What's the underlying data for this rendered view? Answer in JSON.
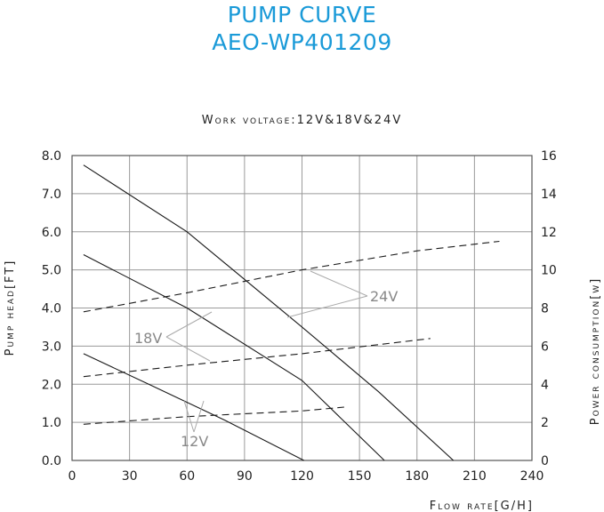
{
  "chart_data": {
    "type": "line",
    "title": "PUMP CURVE",
    "subtitle": "AEO-WP401209",
    "annotation": "Work voltage:12V&18V&24V",
    "xlabel": "Flow rate[G/H]",
    "ylabel_left": "Pump head[FT]",
    "ylabel_right": "Power consumption[w]",
    "xlim": [
      0,
      240
    ],
    "ylim_left": [
      0,
      8
    ],
    "ylim_right": [
      0,
      16
    ],
    "x_ticks": [
      "0",
      "30",
      "60",
      "90",
      "120",
      "150",
      "180",
      "210",
      "240"
    ],
    "y_left_ticks": [
      "0.0",
      "1.0",
      "2.0",
      "3.0",
      "4.0",
      "5.0",
      "6.0",
      "7.0",
      "8.0"
    ],
    "y_right_ticks": [
      "0",
      "2",
      "4",
      "6",
      "8",
      "10",
      "12",
      "14",
      "16"
    ],
    "grid": true,
    "series": [
      {
        "name": "24V",
        "kind": "head",
        "axis": "left",
        "style": "solid",
        "x": [
          6,
          60,
          120,
          160,
          199
        ],
        "y": [
          7.75,
          6.0,
          3.5,
          1.8,
          0.0
        ]
      },
      {
        "name": "18V",
        "kind": "head",
        "axis": "left",
        "style": "solid",
        "x": [
          6,
          60,
          120,
          163
        ],
        "y": [
          5.4,
          4.0,
          2.1,
          0.0
        ]
      },
      {
        "name": "12V",
        "kind": "head",
        "axis": "left",
        "style": "solid",
        "x": [
          6,
          40,
          80,
          121
        ],
        "y": [
          2.8,
          2.0,
          1.05,
          0.0
        ]
      },
      {
        "name": "24V",
        "kind": "power",
        "axis": "right",
        "style": "dashed",
        "x": [
          6,
          60,
          120,
          180,
          223
        ],
        "y": [
          7.8,
          8.8,
          10.0,
          11.0,
          11.5
        ]
      },
      {
        "name": "18V",
        "kind": "power",
        "axis": "right",
        "style": "dashed",
        "x": [
          6,
          60,
          120,
          187
        ],
        "y": [
          4.4,
          5.0,
          5.6,
          6.4
        ]
      },
      {
        "name": "12V",
        "kind": "power",
        "axis": "right",
        "style": "dashed",
        "x": [
          6,
          60,
          120,
          142
        ],
        "y": [
          1.9,
          2.3,
          2.6,
          2.8
        ]
      }
    ],
    "callouts": [
      "24V",
      "18V",
      "12V"
    ]
  }
}
